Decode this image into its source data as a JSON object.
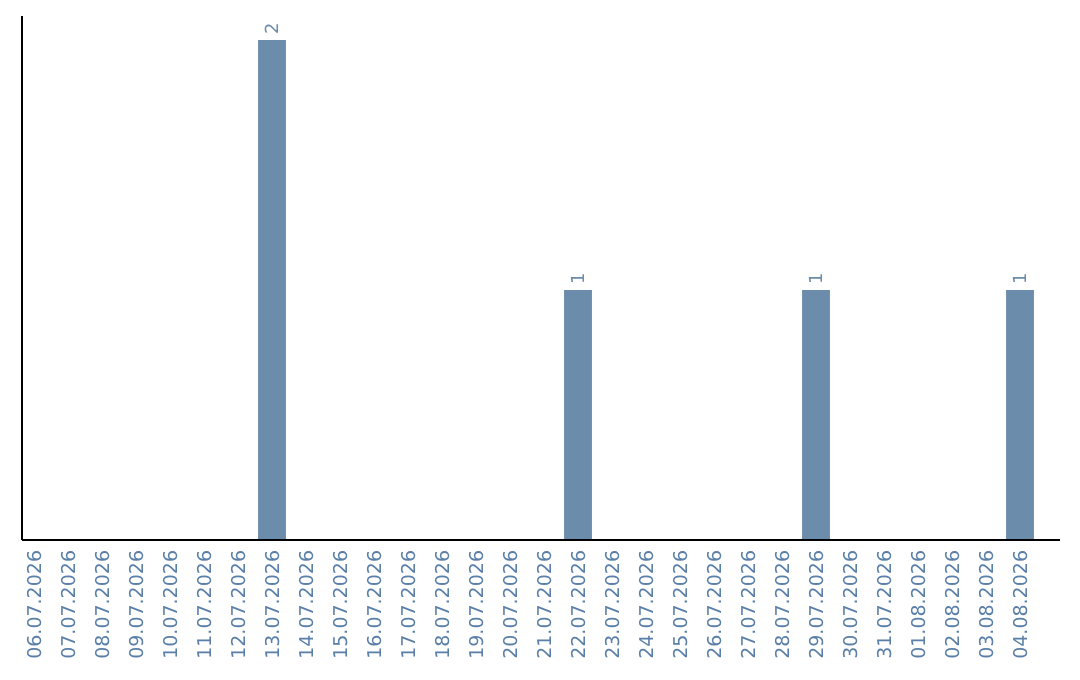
{
  "chart_data": {
    "type": "bar",
    "categories": [
      "06.07.2026",
      "07.07.2026",
      "08.07.2026",
      "09.07.2026",
      "10.07.2026",
      "11.07.2026",
      "12.07.2026",
      "13.07.2026",
      "14.07.2026",
      "15.07.2026",
      "16.07.2026",
      "17.07.2026",
      "18.07.2026",
      "19.07.2026",
      "20.07.2026",
      "21.07.2026",
      "22.07.2026",
      "23.07.2026",
      "24.07.2026",
      "25.07.2026",
      "26.07.2026",
      "27.07.2026",
      "28.07.2026",
      "29.07.2026",
      "30.07.2026",
      "31.07.2026",
      "01.08.2026",
      "02.08.2026",
      "03.08.2026",
      "04.08.2026"
    ],
    "values": [
      0,
      0,
      0,
      0,
      0,
      0,
      0,
      2,
      0,
      0,
      0,
      0,
      0,
      0,
      0,
      0,
      1,
      0,
      0,
      0,
      0,
      0,
      0,
      1,
      0,
      0,
      0,
      0,
      0,
      1
    ],
    "value_labels": [
      null,
      null,
      null,
      null,
      null,
      null,
      null,
      "2",
      null,
      null,
      null,
      null,
      null,
      null,
      null,
      null,
      "1",
      null,
      null,
      null,
      null,
      null,
      null,
      "1",
      null,
      null,
      null,
      null,
      null,
      "1"
    ],
    "color": "#6b8cab"
  }
}
